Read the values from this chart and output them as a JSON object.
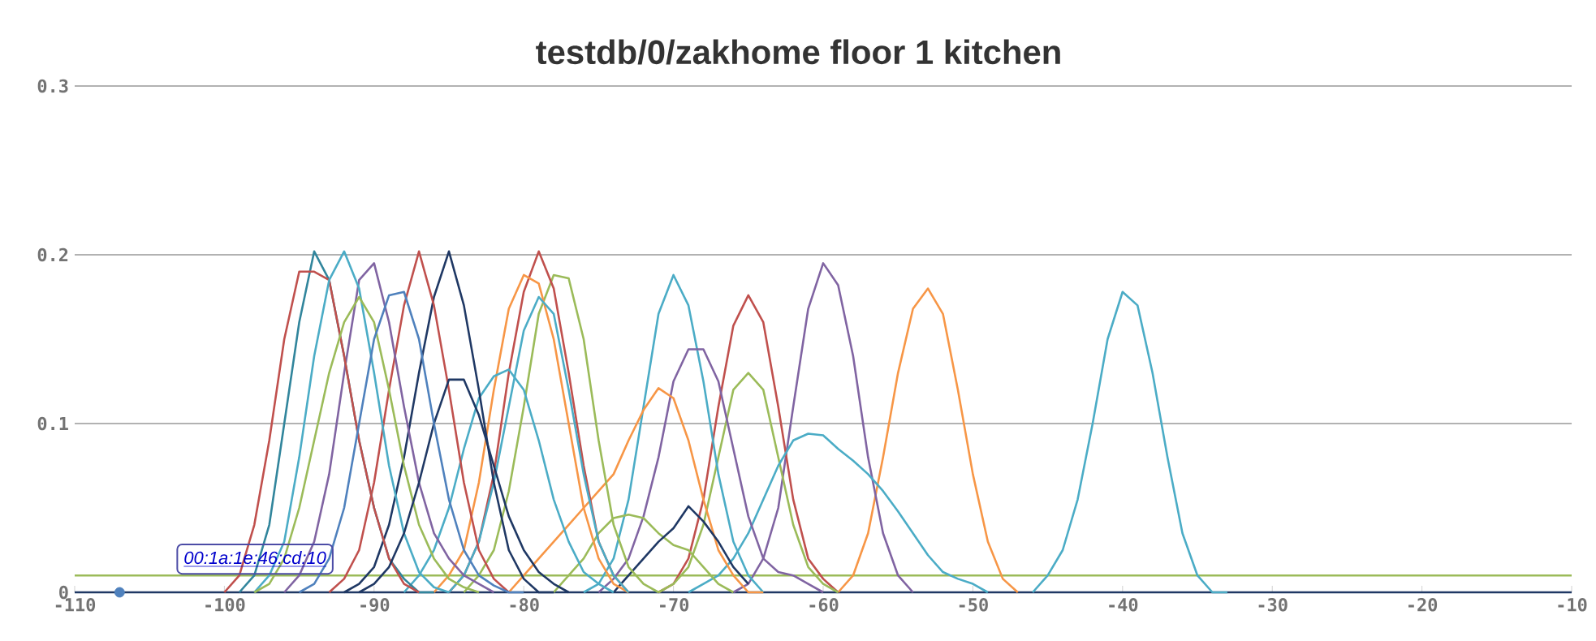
{
  "chart_data": {
    "type": "line",
    "title": "testdb/0/zakhome floor 1 kitchen",
    "xlim": [
      -110,
      -10
    ],
    "xticks": [
      -110,
      -100,
      -90,
      -80,
      -70,
      -60,
      -50,
      -40,
      -30,
      -20,
      {
        "value": -10,
        "label": "-10"
      }
    ],
    "ylim": [
      0,
      0.3
    ],
    "yticks": [
      0,
      0.1,
      0.2,
      0.3
    ],
    "grid": "y",
    "annotations": [
      "00:1a:1e:46:cd:10"
    ],
    "series": [
      {
        "color": "#1f3864",
        "x": [
          -110,
          -10
        ],
        "values": [
          0,
          0
        ]
      },
      {
        "color": "#9bbb59",
        "x": [
          -110,
          -10
        ],
        "values": [
          0.01,
          0.01
        ]
      },
      {
        "color": "#4bacc6",
        "x": [
          -46,
          -45,
          -44,
          -43,
          -42,
          -41,
          -40,
          -39,
          -38,
          -37,
          -36,
          -35,
          -34,
          -33
        ],
        "values": [
          0,
          0.01,
          0.025,
          0.055,
          0.1,
          0.15,
          0.178,
          0.17,
          0.13,
          0.08,
          0.035,
          0.01,
          0,
          0
        ]
      },
      {
        "color": "#f79646",
        "x": [
          -59,
          -58,
          -57,
          -56,
          -55,
          -54,
          -53,
          -52,
          -51,
          -50,
          -49,
          -48,
          -47
        ],
        "values": [
          0,
          0.01,
          0.035,
          0.08,
          0.13,
          0.168,
          0.18,
          0.165,
          0.12,
          0.07,
          0.03,
          0.008,
          0
        ]
      },
      {
        "color": "#8064a2",
        "x": [
          -66,
          -65,
          -64,
          -63,
          -62,
          -61,
          -60,
          -59,
          -58,
          -57,
          -56,
          -55,
          -54
        ],
        "values": [
          0,
          0.005,
          0.02,
          0.05,
          0.11,
          0.168,
          0.195,
          0.182,
          0.14,
          0.08,
          0.035,
          0.01,
          0
        ]
      },
      {
        "color": "#c0504d",
        "x": [
          -71,
          -70,
          -69,
          -68,
          -67,
          -66,
          -65,
          -64,
          -63,
          -62,
          -61,
          -60,
          -59
        ],
        "values": [
          0,
          0.005,
          0.02,
          0.055,
          0.11,
          0.158,
          0.176,
          0.16,
          0.11,
          0.055,
          0.02,
          0.008,
          0
        ]
      },
      {
        "color": "#9bbb59",
        "x": [
          -71,
          -70,
          -69,
          -68,
          -67,
          -66,
          -65,
          -64,
          -63,
          -62,
          -61,
          -60,
          -59
        ],
        "values": [
          0,
          0.005,
          0.015,
          0.04,
          0.08,
          0.12,
          0.13,
          0.12,
          0.08,
          0.04,
          0.015,
          0.005,
          0
        ]
      },
      {
        "color": "#4bacc6",
        "x": [
          -69,
          -68,
          -67,
          -66,
          -65,
          -64,
          -63,
          -62,
          -61,
          -60,
          -59,
          -58,
          -57,
          -56,
          -55,
          -54,
          -53,
          -52,
          -51,
          -50,
          -49
        ],
        "values": [
          0,
          0.005,
          0.01,
          0.02,
          0.035,
          0.055,
          0.075,
          0.09,
          0.094,
          0.093,
          0.085,
          0.078,
          0.07,
          0.06,
          0.048,
          0.035,
          0.022,
          0.012,
          0.008,
          0.005,
          0
        ]
      },
      {
        "color": "#4bacc6",
        "x": [
          -76,
          -75,
          -74,
          -73,
          -72,
          -71,
          -70,
          -69,
          -68,
          -67,
          -66,
          -65,
          -64
        ],
        "values": [
          0,
          0.005,
          0.02,
          0.055,
          0.11,
          0.165,
          0.188,
          0.17,
          0.125,
          0.07,
          0.03,
          0.01,
          0
        ]
      },
      {
        "color": "#8064a2",
        "x": [
          -75,
          -74,
          -73,
          -72,
          -71,
          -70,
          -69,
          -68,
          -67,
          -66,
          -65,
          -64,
          -63,
          -62,
          -61,
          -60
        ],
        "values": [
          0,
          0.008,
          0.02,
          0.045,
          0.08,
          0.125,
          0.144,
          0.144,
          0.125,
          0.085,
          0.045,
          0.02,
          0.012,
          0.01,
          0.005,
          0
        ]
      },
      {
        "color": "#f79646",
        "x": [
          -81,
          -80,
          -79,
          -78,
          -77,
          -76,
          -75,
          -74,
          -73,
          -72,
          -71,
          -70,
          -69,
          -68,
          -67,
          -66,
          -65,
          -64
        ],
        "values": [
          0,
          0.01,
          0.02,
          0.03,
          0.04,
          0.05,
          0.06,
          0.07,
          0.09,
          0.108,
          0.121,
          0.115,
          0.09,
          0.055,
          0.025,
          0.01,
          0,
          0
        ]
      },
      {
        "color": "#9bbb59",
        "x": [
          -78,
          -77,
          -76,
          -75,
          -74,
          -73,
          -72,
          -71,
          -70,
          -69,
          -68,
          -67,
          -66
        ],
        "values": [
          0,
          0.01,
          0.02,
          0.035,
          0.044,
          0.046,
          0.044,
          0.035,
          0.028,
          0.025,
          0.015,
          0.005,
          0
        ]
      },
      {
        "color": "#1f3864",
        "x": [
          -74,
          -73,
          -72,
          -71,
          -70,
          -69,
          -68,
          -67,
          -66,
          -65
        ],
        "values": [
          0,
          0.01,
          0.02,
          0.03,
          0.038,
          0.051,
          0.042,
          0.03,
          0.015,
          0.005
        ]
      },
      {
        "color": "#9bbb59",
        "x": [
          -84,
          -83,
          -82,
          -81,
          -80,
          -79,
          -78,
          -77,
          -76,
          -75,
          -74,
          -73,
          -72,
          -71
        ],
        "values": [
          0,
          0.01,
          0.025,
          0.06,
          0.11,
          0.165,
          0.188,
          0.186,
          0.15,
          0.09,
          0.04,
          0.015,
          0.005,
          0
        ]
      },
      {
        "color": "#c0504d",
        "x": [
          -85,
          -84,
          -83,
          -82,
          -81,
          -80,
          -79,
          -78,
          -77,
          -76,
          -75,
          -74,
          -73
        ],
        "values": [
          0,
          0.01,
          0.03,
          0.07,
          0.13,
          0.178,
          0.202,
          0.18,
          0.13,
          0.075,
          0.03,
          0.01,
          0
        ]
      },
      {
        "color": "#f79646",
        "x": [
          -86,
          -85,
          -84,
          -83,
          -82,
          -81,
          -80,
          -79,
          -78,
          -77,
          -76,
          -75,
          -74,
          -73
        ],
        "values": [
          0,
          0.01,
          0.025,
          0.065,
          0.12,
          0.168,
          0.188,
          0.183,
          0.15,
          0.1,
          0.05,
          0.02,
          0.005,
          0
        ]
      },
      {
        "color": "#4bacc6",
        "x": [
          -85,
          -84,
          -83,
          -82,
          -81,
          -80,
          -79,
          -78,
          -77,
          -76,
          -75,
          -74,
          -73
        ],
        "values": [
          0,
          0.01,
          0.03,
          0.065,
          0.11,
          0.155,
          0.175,
          0.165,
          0.12,
          0.07,
          0.03,
          0.01,
          0
        ]
      },
      {
        "color": "#4bacc6",
        "x": [
          -88,
          -87,
          -86,
          -85,
          -84,
          -83,
          -82,
          -81,
          -80,
          -79,
          -78,
          -77,
          -76,
          -75,
          -74
        ],
        "values": [
          0,
          0.01,
          0.025,
          0.05,
          0.085,
          0.115,
          0.128,
          0.132,
          0.12,
          0.09,
          0.055,
          0.03,
          0.012,
          0.005,
          0
        ]
      },
      {
        "color": "#1f3864",
        "x": [
          -92,
          -91,
          -90,
          -89,
          -88,
          -87,
          -86,
          -85,
          -84,
          -83,
          -82,
          -81,
          -80,
          -79,
          -78
        ],
        "values": [
          0,
          0.005,
          0.015,
          0.04,
          0.08,
          0.13,
          0.175,
          0.202,
          0.17,
          0.12,
          0.065,
          0.025,
          0.008,
          0,
          0
        ]
      },
      {
        "color": "#c0504d",
        "x": [
          -93,
          -92,
          -91,
          -90,
          -89,
          -88,
          -87,
          -86,
          -85,
          -84,
          -83,
          -82,
          -81
        ],
        "values": [
          0,
          0.008,
          0.025,
          0.065,
          0.12,
          0.17,
          0.202,
          0.17,
          0.12,
          0.065,
          0.025,
          0.008,
          0
        ]
      },
      {
        "color": "#8064a2",
        "x": [
          -96,
          -95,
          -94,
          -93,
          -92,
          -91,
          -90,
          -89,
          -88,
          -87,
          -86,
          -85,
          -84,
          -83,
          -82
        ],
        "values": [
          0,
          0.01,
          0.03,
          0.07,
          0.13,
          0.185,
          0.195,
          0.16,
          0.11,
          0.065,
          0.035,
          0.02,
          0.01,
          0.005,
          0
        ]
      },
      {
        "color": "#31859c",
        "x": [
          -99,
          -98,
          -97,
          -96,
          -95,
          -94,
          -93,
          -92,
          -91,
          -90,
          -89,
          -88,
          -87,
          -86
        ],
        "values": [
          0,
          0.01,
          0.04,
          0.1,
          0.16,
          0.202,
          0.185,
          0.14,
          0.09,
          0.05,
          0.02,
          0.008,
          0,
          0
        ]
      },
      {
        "color": "#c0504d",
        "x": [
          -100,
          -99,
          -98,
          -97,
          -96,
          -95,
          -94,
          -93,
          -92,
          -91,
          -90,
          -89,
          -88,
          -87
        ],
        "values": [
          0,
          0.01,
          0.04,
          0.09,
          0.15,
          0.19,
          0.19,
          0.185,
          0.14,
          0.09,
          0.05,
          0.02,
          0.005,
          0
        ]
      },
      {
        "color": "#4bacc6",
        "x": [
          -98,
          -97,
          -96,
          -95,
          -94,
          -93,
          -92,
          -91,
          -90,
          -89,
          -88,
          -87,
          -86,
          -85
        ],
        "values": [
          0,
          0.01,
          0.03,
          0.08,
          0.14,
          0.185,
          0.202,
          0.18,
          0.13,
          0.075,
          0.035,
          0.012,
          0.003,
          0
        ]
      },
      {
        "color": "#9bbb59",
        "x": [
          -98,
          -97,
          -96,
          -95,
          -94,
          -93,
          -92,
          -91,
          -90,
          -89,
          -88,
          -87,
          -86,
          -85,
          -84,
          -83
        ],
        "values": [
          0,
          0.005,
          0.02,
          0.05,
          0.09,
          0.13,
          0.16,
          0.175,
          0.16,
          0.12,
          0.075,
          0.04,
          0.02,
          0.008,
          0.003,
          0
        ]
      },
      {
        "color": "#1f3864",
        "x": [
          -91,
          -90,
          -89,
          -88,
          -87,
          -86,
          -85,
          -84,
          -83,
          -82,
          -81,
          -80,
          -79,
          -78,
          -77
        ],
        "values": [
          0,
          0.005,
          0.015,
          0.035,
          0.065,
          0.1,
          0.126,
          0.126,
          0.105,
          0.075,
          0.045,
          0.025,
          0.012,
          0.005,
          0
        ]
      },
      {
        "color": "#4f81bd",
        "x": [
          -95,
          -94,
          -93,
          -92,
          -91,
          -90,
          -89,
          -88,
          -87,
          -86,
          -85,
          -84,
          -83,
          -82,
          -81,
          -80
        ],
        "values": [
          0,
          0.005,
          0.02,
          0.05,
          0.1,
          0.15,
          0.176,
          0.178,
          0.15,
          0.1,
          0.055,
          0.025,
          0.01,
          0.004,
          0,
          0
        ]
      },
      {
        "type": "scatter",
        "marker": "circle",
        "color": "#4f81bd",
        "x": [
          -107
        ],
        "values": [
          0
        ]
      }
    ]
  }
}
